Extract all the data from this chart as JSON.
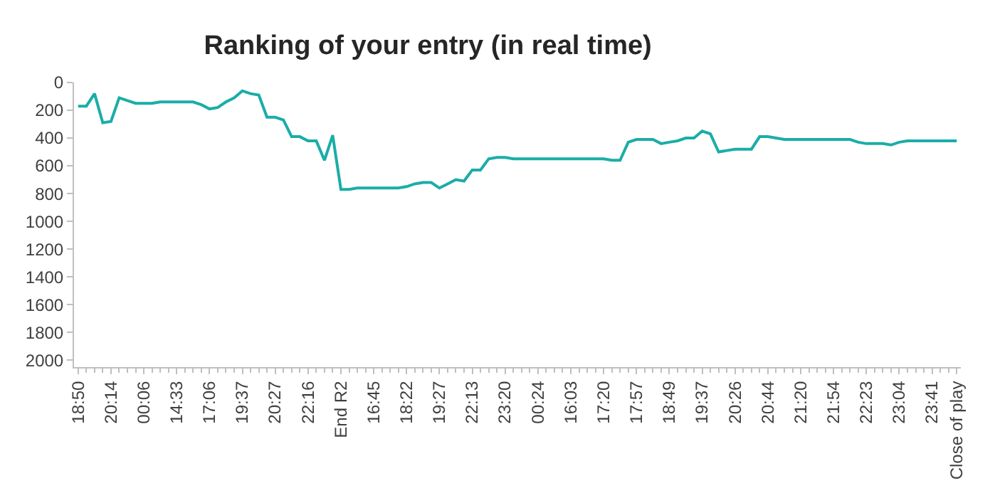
{
  "chart_data": {
    "type": "line",
    "title": "Ranking of your entry (in real time)",
    "categories": [
      "18:50",
      null,
      null,
      null,
      "20:14",
      null,
      null,
      null,
      "00:06",
      null,
      null,
      null,
      "14:33",
      null,
      null,
      null,
      "17:06",
      null,
      null,
      null,
      "19:37",
      null,
      null,
      null,
      "20:27",
      null,
      null,
      null,
      "22:16",
      null,
      null,
      null,
      "End R2",
      null,
      null,
      null,
      "16:45",
      null,
      null,
      null,
      "18:22",
      null,
      null,
      null,
      "19:27",
      null,
      null,
      null,
      "22:13",
      null,
      null,
      null,
      "23:20",
      null,
      null,
      null,
      "00:24",
      null,
      null,
      null,
      "16:03",
      null,
      null,
      null,
      "17:20",
      null,
      null,
      null,
      "17:57",
      null,
      null,
      null,
      "18:49",
      null,
      null,
      null,
      "19:37",
      null,
      null,
      null,
      "20:26",
      null,
      null,
      null,
      "20:44",
      null,
      null,
      null,
      "21:20",
      null,
      null,
      null,
      "21:54",
      null,
      null,
      null,
      "22:23",
      null,
      null,
      null,
      "23:04",
      null,
      null,
      null,
      "23:41",
      null,
      null,
      "Close of play"
    ],
    "series": [
      {
        "color": "#1aada8",
        "values": [
          170,
          170,
          80,
          290,
          280,
          110,
          130,
          150,
          150,
          150,
          140,
          140,
          140,
          140,
          140,
          160,
          190,
          180,
          140,
          110,
          60,
          80,
          90,
          250,
          250,
          270,
          390,
          390,
          420,
          420,
          560,
          380,
          770,
          770,
          760,
          760,
          760,
          760,
          760,
          760,
          750,
          730,
          720,
          720,
          760,
          730,
          700,
          710,
          630,
          630,
          550,
          540,
          540,
          550,
          550,
          550,
          550,
          550,
          550,
          550,
          550,
          550,
          550,
          550,
          550,
          560,
          560,
          430,
          410,
          410,
          410,
          440,
          430,
          420,
          400,
          400,
          350,
          370,
          500,
          490,
          480,
          480,
          480,
          390,
          390,
          400,
          410,
          410,
          410,
          410,
          410,
          410,
          410,
          410,
          410,
          430,
          440,
          440,
          440,
          450,
          430,
          420,
          420,
          420,
          420,
          420,
          420,
          420
        ]
      }
    ],
    "ylim": [
      2050,
      0
    ],
    "yticks": [
      0,
      200,
      400,
      600,
      800,
      1000,
      1200,
      1400,
      1600,
      1800,
      2000
    ],
    "marker": "none",
    "line_style": "solid"
  }
}
